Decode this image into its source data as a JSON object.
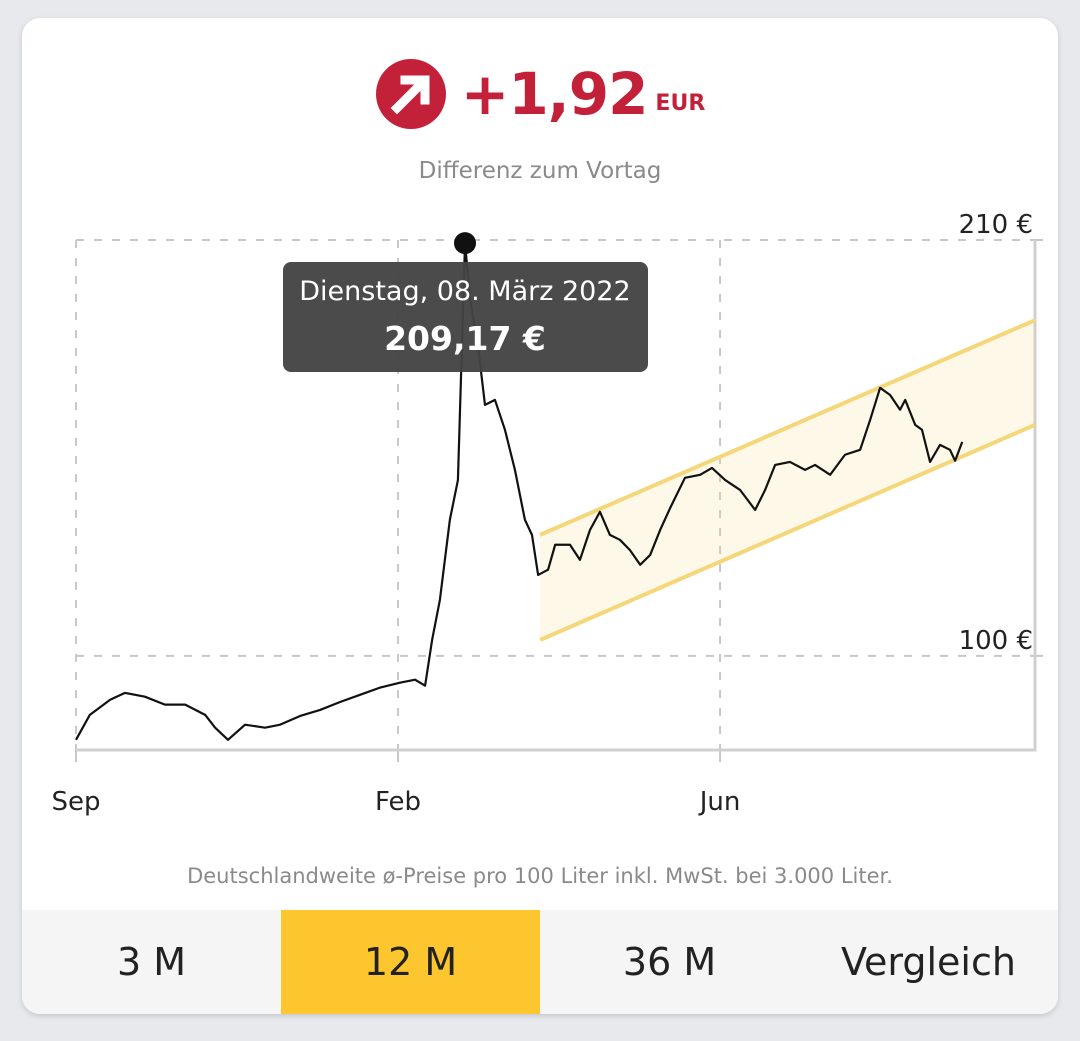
{
  "header": {
    "change": "+1,92",
    "unit": "EUR",
    "subtitle": "Differenz zum Vortag"
  },
  "chart_data": {
    "type": "line",
    "x": [
      0,
      4.3,
      10.6,
      15.2,
      21.4,
      27.6,
      33.9,
      40.1,
      43.2,
      47.2,
      52.5,
      58.7,
      63.4,
      69.6,
      75.8,
      82.0,
      88.2,
      94.4,
      100.6,
      105.3,
      108.4,
      110.6,
      113.0,
      116.1,
      118.6,
      119.9,
      120.8,
      122.4,
      124.8,
      127.0,
      130.1,
      133.2,
      136.3,
      139.4,
      141.6,
      143.5,
      146.6,
      148.8,
      153.4,
      156.5,
      159.6,
      162.7,
      165.8,
      168.9,
      172.0,
      175.2,
      178.3,
      181.4,
      184.5,
      189.1,
      193.8,
      197.5,
      201.6,
      206.2,
      210.9,
      214.0,
      217.1,
      221.7,
      226.4,
      229.5,
      234.2,
      238.8,
      243.5,
      246.6,
      249.7,
      252.8,
      255.9,
      257.5,
      260.6,
      262.7,
      265.2,
      268.3,
      271.4,
      273.0,
      275.2
    ],
    "series": [
      {
        "color": "#111111",
        "values": [
          77.8,
          84.4,
          88.4,
          90.2,
          89.2,
          87.1,
          87.1,
          84.4,
          81.0,
          77.8,
          81.8,
          81.0,
          81.8,
          84.1,
          85.7,
          87.8,
          89.7,
          91.6,
          92.9,
          93.7,
          92.1,
          104.3,
          114.8,
          136.0,
          146.5,
          183.6,
          209.17,
          194.1,
          182.2,
          166.4,
          167.7,
          159.8,
          149.2,
          136.0,
          132.0,
          121.4,
          122.8,
          129.4,
          129.4,
          125.4,
          133.3,
          138.1,
          132.0,
          130.7,
          128.0,
          124.1,
          126.7,
          133.3,
          139.1,
          147.1,
          147.9,
          149.7,
          146.5,
          143.9,
          138.6,
          143.9,
          150.5,
          151.3,
          149.2,
          150.5,
          147.9,
          153.2,
          154.5,
          162.4,
          170.9,
          169.0,
          165.1,
          167.7,
          161.1,
          159.8,
          151.3,
          155.8,
          154.5,
          151.6,
          156.6
        ]
      }
    ],
    "trend_channel": {
      "x": [
        144.1,
        297.8
      ],
      "upper": [
        132.0,
        188.8
      ],
      "lower": [
        104.2,
        161.1
      ],
      "color": "#f5d77a"
    },
    "xlim": [
      0,
      297.8
    ],
    "ylim": [
      75.1,
      210
    ],
    "xticks": [
      {
        "value": 0,
        "label": "Sep"
      },
      {
        "value": 100,
        "label": "Feb"
      },
      {
        "value": 200,
        "label": "Jun"
      }
    ],
    "yticks": [
      {
        "value": 210,
        "label": "210 €"
      },
      {
        "value": 100,
        "label": "100 €"
      }
    ],
    "grid": true,
    "tooltip": {
      "date": "Dienstag, 08. März 2022",
      "x": 120.8,
      "value": 209.17,
      "value_label": "209,17 €"
    }
  },
  "footnote": "Deutschlandweite ø-Preise pro 100 Liter inkl. MwSt. bei 3.000 Liter.",
  "tabs": {
    "items": [
      "3 M",
      "12 M",
      "36 M",
      "Vergleich"
    ],
    "active": 1
  }
}
